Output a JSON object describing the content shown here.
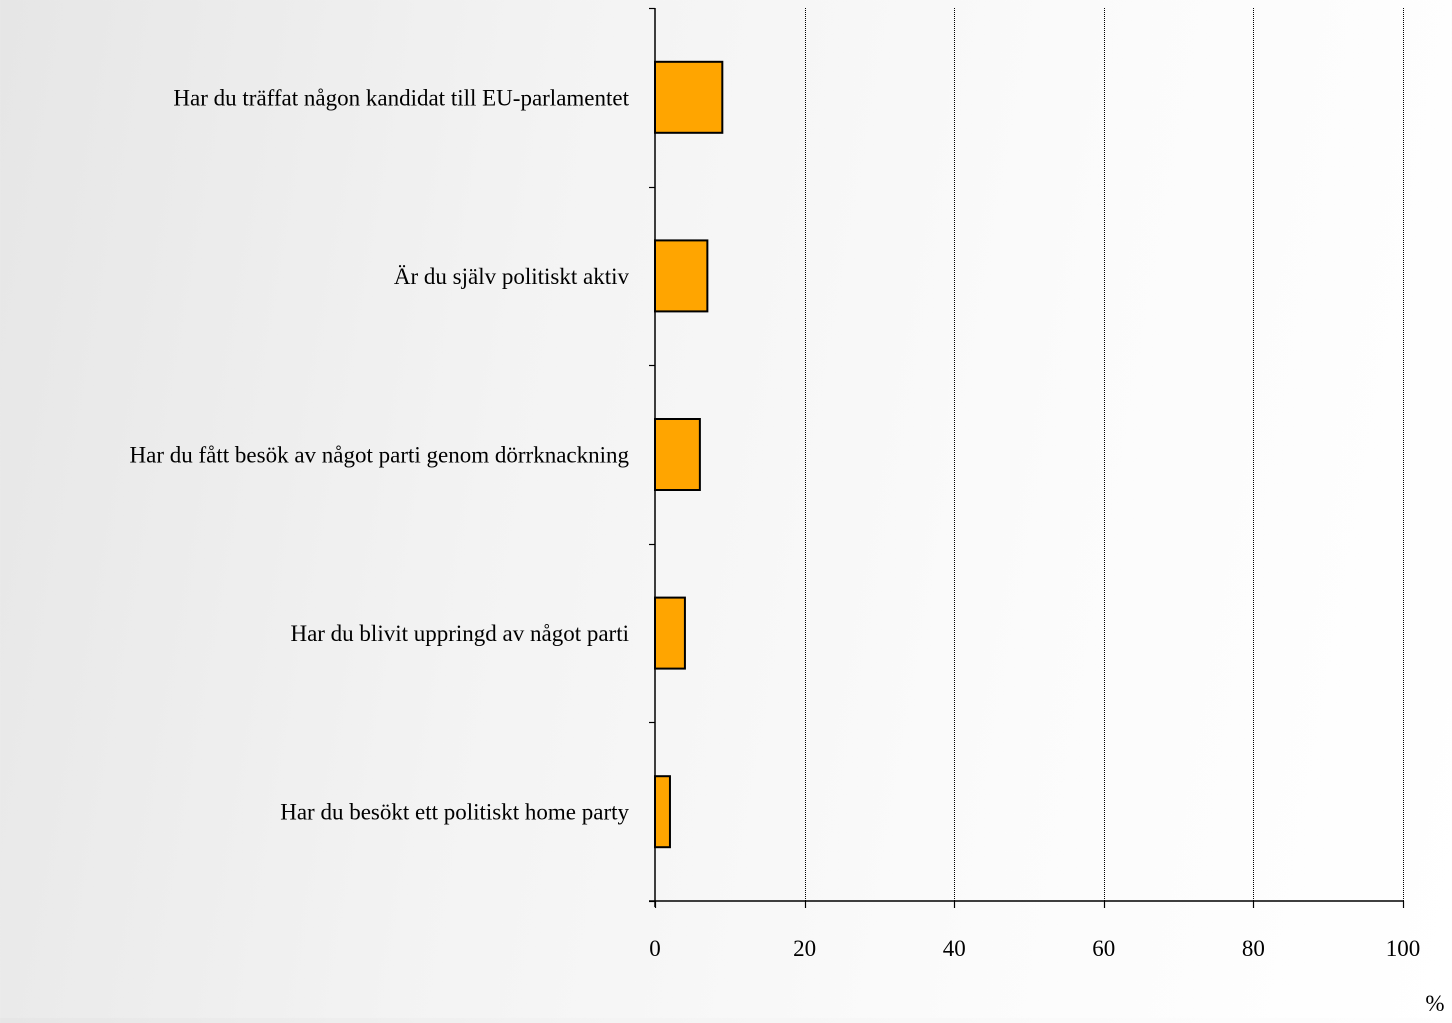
{
  "colors": {
    "bar_fill": "#FFA500",
    "bar_stroke": "#000000",
    "gridline": "#000000",
    "axis": "#000000"
  },
  "chart_data": {
    "type": "bar",
    "orientation": "horizontal",
    "categories": [
      "Har du träffat någon kandidat till EU-parlamentet",
      "Är du själv politiskt aktiv",
      "Har du fått besök av något parti genom dörrknackning",
      "Har du blivit uppringd av något parti",
      "Har du besökt ett politiskt home party"
    ],
    "values": [
      9,
      7,
      6,
      4,
      2
    ],
    "xlabel": "%",
    "xlim": [
      0,
      100
    ],
    "xticks": [
      0,
      20,
      40,
      60,
      80,
      100
    ],
    "xtick_labels": [
      "0",
      "20",
      "40",
      "60",
      "80",
      "100"
    ],
    "grid": "vertical dotted",
    "legend": "none"
  }
}
